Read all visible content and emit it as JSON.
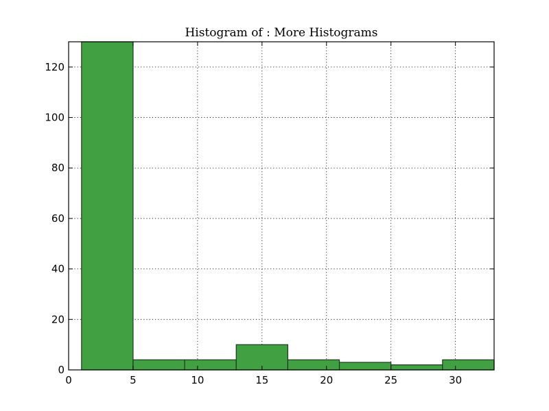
{
  "chart_data": {
    "type": "bar",
    "title": "Histogram of : More Histograms",
    "xlabel": "",
    "ylabel": "",
    "bins": [
      {
        "x0": 1,
        "x1": 5,
        "count": 130
      },
      {
        "x0": 5,
        "x1": 9,
        "count": 4
      },
      {
        "x0": 9,
        "x1": 13,
        "count": 4
      },
      {
        "x0": 13,
        "x1": 17,
        "count": 10
      },
      {
        "x0": 17,
        "x1": 21,
        "count": 4
      },
      {
        "x0": 21,
        "x1": 25,
        "count": 3
      },
      {
        "x0": 25,
        "x1": 29,
        "count": 2
      },
      {
        "x0": 29,
        "x1": 33,
        "count": 4
      }
    ],
    "xlim": [
      0,
      33
    ],
    "ylim": [
      0,
      130
    ],
    "xticks": [
      0,
      5,
      10,
      15,
      20,
      25,
      30
    ],
    "yticks": [
      0,
      20,
      40,
      60,
      80,
      100,
      120
    ],
    "grid": true,
    "bar_color": "#41a041",
    "edge_color": "#1f3a1f"
  }
}
